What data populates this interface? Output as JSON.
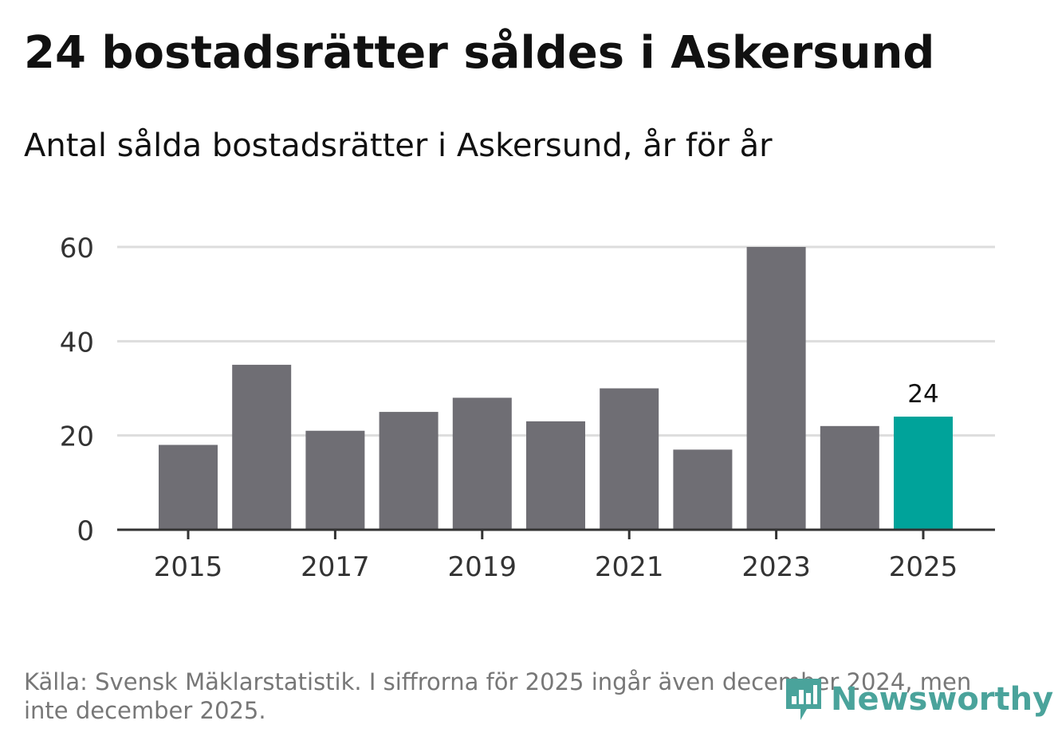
{
  "title": "24 bostadsrätter såldes i Askersund",
  "subtitle": "Antal sålda bostadsrätter i Askersund, år för år",
  "source": "Källa: Svensk Mäklarstatistik. I siffrorna för 2025 ingår även december 2024, men inte december 2025.",
  "brand": "Newsworthy",
  "colors": {
    "bar": "#6f6e74",
    "highlight": "#00a39a",
    "grid": "#dddddd",
    "axis": "#333333",
    "logo": "#4aa39b"
  },
  "chart_data": {
    "type": "bar",
    "categories": [
      "2015",
      "2016",
      "2017",
      "2018",
      "2019",
      "2020",
      "2021",
      "2022",
      "2023",
      "2024",
      "2025"
    ],
    "values": [
      18,
      35,
      21,
      25,
      28,
      23,
      30,
      17,
      60,
      22,
      24
    ],
    "highlight_index": 10,
    "data_labels": [
      {
        "index": 10,
        "text": "24"
      }
    ],
    "x_tick_labels": [
      "2015",
      "2017",
      "2019",
      "2021",
      "2023",
      "2025"
    ],
    "y_ticks": [
      0,
      20,
      40,
      60
    ],
    "ylim": [
      0,
      60
    ],
    "grid": true,
    "legend": "none"
  }
}
